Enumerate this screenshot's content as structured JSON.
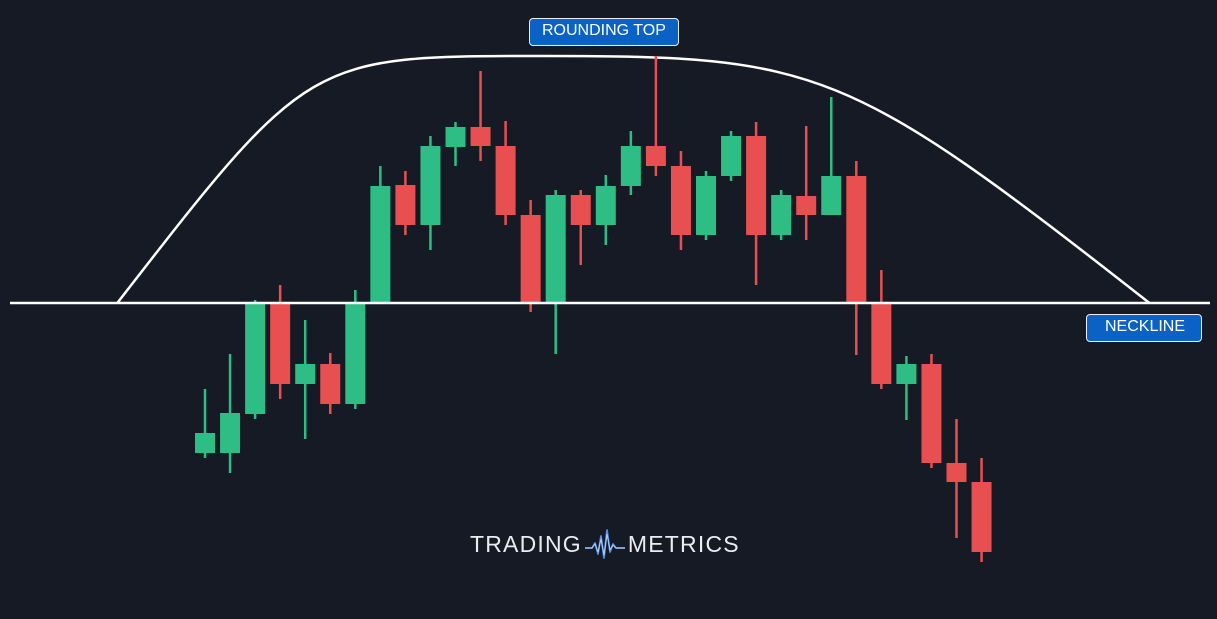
{
  "labels": {
    "rounding_top": "ROUNDING TOP",
    "neckline": "NECKLINE"
  },
  "logo": {
    "left_text": "TRADING",
    "right_text": "METRICS",
    "icon": "waveform-icon"
  },
  "colors": {
    "background": "#161a25",
    "up": "#2dbd85",
    "down": "#e84f50",
    "line": "#ffffff",
    "label_bg": "#0a62c4"
  },
  "chart_data": {
    "type": "candlestick",
    "title": "",
    "ylim": [
      0,
      619
    ],
    "neckline": 316,
    "arc": {
      "start_index": -3.5,
      "peak_index": 13.6,
      "end_index": 37.7,
      "peak": 563
    },
    "candles": [
      {
        "i": 0,
        "open": 166,
        "close": 186,
        "high": 230,
        "low": 161
      },
      {
        "i": 1,
        "open": 166,
        "close": 206,
        "high": 265,
        "low": 146
      },
      {
        "i": 2,
        "open": 205,
        "close": 317,
        "high": 319,
        "low": 200
      },
      {
        "i": 3,
        "open": 316,
        "close": 235,
        "high": 334,
        "low": 220
      },
      {
        "i": 4,
        "open": 235,
        "close": 255,
        "high": 299,
        "low": 180
      },
      {
        "i": 5,
        "open": 255,
        "close": 215,
        "high": 266,
        "low": 205
      },
      {
        "i": 6,
        "open": 215,
        "close": 316,
        "high": 329,
        "low": 210
      },
      {
        "i": 7,
        "open": 316,
        "close": 433,
        "high": 453,
        "low": 316
      },
      {
        "i": 8,
        "open": 434,
        "close": 394,
        "high": 448,
        "low": 384
      },
      {
        "i": 9,
        "open": 394,
        "close": 473,
        "high": 483,
        "low": 369
      },
      {
        "i": 10,
        "open": 472,
        "close": 492,
        "high": 497,
        "low": 453
      },
      {
        "i": 11,
        "open": 492,
        "close": 473,
        "high": 548,
        "low": 458
      },
      {
        "i": 12,
        "open": 473,
        "close": 404,
        "high": 498,
        "low": 394
      },
      {
        "i": 13,
        "open": 404,
        "close": 317,
        "high": 419,
        "low": 307
      },
      {
        "i": 14,
        "open": 316,
        "close": 424,
        "high": 429,
        "low": 265
      },
      {
        "i": 15,
        "open": 424,
        "close": 394,
        "high": 429,
        "low": 354
      },
      {
        "i": 16,
        "open": 394,
        "close": 433,
        "high": 444,
        "low": 374
      },
      {
        "i": 17,
        "open": 433,
        "close": 473,
        "high": 488,
        "low": 424
      },
      {
        "i": 18,
        "open": 473,
        "close": 453,
        "high": 563,
        "low": 443
      },
      {
        "i": 19,
        "open": 453,
        "close": 384,
        "high": 468,
        "low": 369
      },
      {
        "i": 20,
        "open": 384,
        "close": 443,
        "high": 448,
        "low": 379
      },
      {
        "i": 21,
        "open": 443,
        "close": 483,
        "high": 488,
        "low": 438
      },
      {
        "i": 22,
        "open": 483,
        "close": 384,
        "high": 497,
        "low": 334
      },
      {
        "i": 23,
        "open": 384,
        "close": 424,
        "high": 429,
        "low": 379
      },
      {
        "i": 24,
        "open": 423,
        "close": 404,
        "high": 493,
        "low": 379
      },
      {
        "i": 25,
        "open": 404,
        "close": 443,
        "high": 522,
        "low": 404
      },
      {
        "i": 26,
        "open": 443,
        "close": 316,
        "high": 458,
        "low": 264
      },
      {
        "i": 27,
        "open": 315,
        "close": 235,
        "high": 349,
        "low": 230
      },
      {
        "i": 28,
        "open": 235,
        "close": 255,
        "high": 263,
        "low": 199
      },
      {
        "i": 29,
        "open": 255,
        "close": 156,
        "high": 265,
        "low": 151
      },
      {
        "i": 30,
        "open": 156,
        "close": 137,
        "high": 200,
        "low": 81
      },
      {
        "i": 31,
        "open": 137,
        "close": 67,
        "high": 161,
        "low": 57
      }
    ]
  }
}
